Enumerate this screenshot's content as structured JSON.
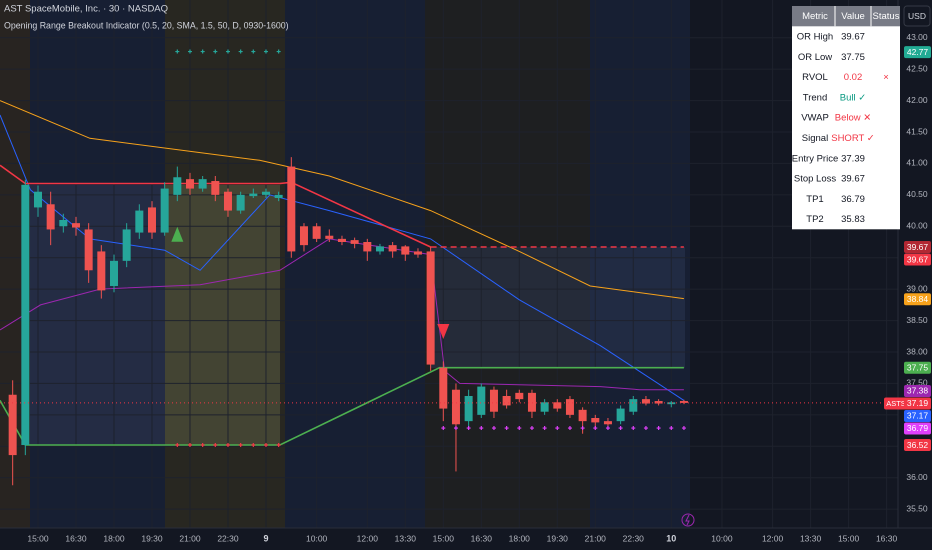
{
  "header": {
    "title": "AST SpaceMobile, Inc. · 30 · NASDAQ",
    "indicator": "Opening Range Breakout Indicator (0.5, 20, SMA, 1.5, 50, D, 0930-1600)"
  },
  "currency": "USD",
  "table": {
    "columns": [
      "Metric",
      "Value",
      "Status"
    ],
    "rows": [
      {
        "cells": [
          "OR High",
          "39.67"
        ]
      },
      {
        "cells": [
          "OR Low",
          "37.75"
        ]
      },
      {
        "cells": [
          "RVOL",
          "0.02",
          "×"
        ],
        "color": "#f23645"
      },
      {
        "cells": [
          "Trend",
          "Bull ✓"
        ],
        "color": "#089981"
      },
      {
        "cells": [
          "VWAP",
          "Below ✕"
        ],
        "color": "#f23645"
      },
      {
        "cells": [
          "Signal",
          "SHORT ✓"
        ],
        "color": "#f23645"
      },
      {
        "cells": [
          "Entry Price",
          "37.39"
        ]
      },
      {
        "cells": [
          "Stop Loss",
          "39.67"
        ]
      },
      {
        "cells": [
          "TP1",
          "36.79"
        ]
      },
      {
        "cells": [
          "TP2",
          "35.83"
        ]
      }
    ]
  },
  "chart_data": {
    "type": "candlestick",
    "up_color": "#26a69a",
    "down_color": "#ef5350",
    "grid": true,
    "xlim": [
      -3,
      67.9
    ],
    "ylim": [
      35.2,
      43.6
    ],
    "xticks": [
      {
        "value": 0,
        "label": "15:00"
      },
      {
        "value": 3,
        "label": "16:30"
      },
      {
        "value": 6,
        "label": "18:00"
      },
      {
        "value": 9,
        "label": "19:30"
      },
      {
        "value": 12,
        "label": "21:00"
      },
      {
        "value": 15,
        "label": "22:30"
      },
      {
        "value": 18,
        "label": "9"
      },
      {
        "value": 22,
        "label": "10:00"
      },
      {
        "value": 26,
        "label": "12:00"
      },
      {
        "value": 29,
        "label": "13:30"
      },
      {
        "value": 32,
        "label": "15:00"
      },
      {
        "value": 35,
        "label": "16:30"
      },
      {
        "value": 38,
        "label": "18:00"
      },
      {
        "value": 41,
        "label": "19:30"
      },
      {
        "value": 44,
        "label": "21:00"
      },
      {
        "value": 47,
        "label": "22:30"
      },
      {
        "value": 50,
        "label": "10"
      },
      {
        "value": 54,
        "label": "10:00"
      },
      {
        "value": 58,
        "label": "12:00"
      },
      {
        "value": 61,
        "label": "13:30"
      },
      {
        "value": 64,
        "label": "15:00"
      },
      {
        "value": 67,
        "label": "16:30"
      }
    ],
    "yticks": [
      {
        "value": 35.5,
        "label": "35.50"
      },
      {
        "value": 36,
        "label": "36.00"
      },
      {
        "value": 36.5,
        "label": "36.50"
      },
      {
        "value": 37,
        "label": "37.00"
      },
      {
        "value": 37.5,
        "label": "37.50"
      },
      {
        "value": 38,
        "label": "38.00"
      },
      {
        "value": 38.5,
        "label": "38.50"
      },
      {
        "value": 39,
        "label": "39.00"
      },
      {
        "value": 39.5,
        "label": "39.50"
      },
      {
        "value": 40,
        "label": "40.00"
      },
      {
        "value": 40.5,
        "label": "40.50"
      },
      {
        "value": 41,
        "label": "41.00"
      },
      {
        "value": 41.5,
        "label": "41.50"
      },
      {
        "value": 42,
        "label": "42.00"
      },
      {
        "value": 42.5,
        "label": "42.50"
      },
      {
        "value": 43,
        "label": "43.00"
      }
    ],
    "x": [
      -2,
      -1,
      0,
      1,
      2,
      3,
      4,
      5,
      6,
      7,
      8,
      9,
      10,
      11,
      12,
      13,
      14,
      15,
      16,
      17,
      18,
      19,
      20,
      21,
      22,
      23,
      24,
      25,
      26,
      27,
      28,
      29,
      30,
      31,
      32,
      33,
      34,
      35,
      36,
      37,
      38,
      39,
      40,
      41,
      42,
      43,
      44,
      45,
      46,
      47,
      48,
      49,
      50,
      51
    ],
    "open": [
      37.32,
      36.52,
      40.3,
      40.35,
      40.0,
      40.05,
      39.95,
      39.6,
      39.05,
      39.45,
      39.9,
      40.3,
      39.9,
      40.5,
      40.75,
      40.6,
      40.72,
      40.55,
      40.25,
      40.48,
      40.5,
      40.45,
      40.95,
      40.0,
      40.0,
      39.85,
      39.8,
      39.78,
      39.75,
      39.6,
      39.7,
      39.68,
      39.6,
      39.6,
      37.75,
      37.4,
      36.9,
      37.0,
      37.4,
      37.3,
      37.35,
      37.35,
      37.05,
      37.2,
      37.25,
      37.08,
      36.95,
      36.9,
      36.9,
      37.05,
      37.25,
      37.22,
      37.17,
      37.22
    ],
    "high": [
      37.55,
      40.74,
      40.65,
      40.55,
      40.2,
      40.15,
      40.05,
      39.7,
      39.55,
      40.05,
      40.35,
      40.4,
      40.7,
      40.95,
      40.85,
      40.8,
      40.8,
      40.6,
      40.55,
      40.6,
      40.6,
      40.55,
      41.1,
      40.05,
      40.05,
      39.95,
      39.85,
      39.82,
      39.8,
      39.72,
      39.75,
      39.7,
      39.65,
      39.67,
      37.85,
      37.5,
      37.4,
      37.5,
      37.45,
      37.4,
      37.4,
      37.4,
      37.25,
      37.25,
      37.3,
      37.12,
      37.0,
      36.95,
      37.15,
      37.3,
      37.3,
      37.25,
      37.22,
      37.24
    ],
    "low": [
      35.88,
      36.36,
      40.15,
      39.7,
      39.9,
      39.85,
      39.1,
      38.85,
      38.95,
      39.35,
      39.8,
      39.8,
      39.85,
      40.4,
      40.5,
      40.55,
      40.4,
      40.15,
      40.2,
      40.45,
      40.45,
      40.4,
      39.5,
      39.6,
      39.75,
      39.75,
      39.7,
      39.65,
      39.45,
      39.55,
      39.5,
      39.45,
      39.5,
      37.7,
      36.9,
      36.1,
      36.8,
      36.95,
      36.95,
      37.1,
      37.2,
      36.95,
      37.0,
      37.05,
      36.95,
      36.7,
      36.8,
      36.8,
      36.85,
      37.0,
      37.15,
      37.15,
      37.12,
      37.17
    ],
    "close": [
      36.36,
      40.66,
      40.55,
      39.95,
      40.1,
      39.98,
      39.3,
      38.98,
      39.45,
      39.95,
      40.25,
      39.9,
      40.6,
      40.78,
      40.6,
      40.75,
      40.5,
      40.25,
      40.5,
      40.52,
      40.55,
      40.5,
      39.6,
      39.7,
      39.8,
      39.8,
      39.75,
      39.72,
      39.6,
      39.68,
      39.6,
      39.55,
      39.55,
      37.8,
      37.1,
      36.85,
      37.3,
      37.45,
      37.05,
      37.15,
      37.25,
      37.05,
      37.2,
      37.1,
      37.0,
      36.9,
      36.88,
      36.85,
      37.1,
      37.25,
      37.18,
      37.18,
      37.2,
      37.19
    ],
    "overlays": [
      {
        "color": "#f7a21b",
        "style": "solid",
        "x": [
          -3,
          4.1,
          17.5,
          23,
          31,
          38,
          43.6,
          51
        ],
        "values": [
          42.0,
          41.4,
          41.05,
          40.8,
          40.25,
          39.6,
          39.05,
          38.85
        ]
      },
      {
        "color": "#2962ff",
        "style": "solid",
        "x": [
          -3,
          -0.6,
          4.1,
          10,
          12.8,
          18.3,
          23,
          31,
          38,
          44.4,
          51
        ],
        "values": [
          41.77,
          40.58,
          39.8,
          39.62,
          39.3,
          40.5,
          40.25,
          39.8,
          38.83,
          38.1,
          37.23
        ]
      },
      {
        "color": "#9c27b0",
        "style": "solid",
        "x": [
          -3,
          0.2,
          4.9,
          12.8,
          19.1,
          23,
          31,
          32.1,
          33.3,
          44.4,
          47.5,
          51
        ],
        "values": [
          38.35,
          38.75,
          39.0,
          39.07,
          39.3,
          39.8,
          39.55,
          37.7,
          37.5,
          37.45,
          37.4,
          37.4
        ]
      },
      {
        "color": "#f23645",
        "style": "solid",
        "x": [
          -3,
          -1,
          19.1,
          20,
          31
        ],
        "values": [
          40.97,
          40.68,
          40.68,
          40.7,
          39.67
        ]
      },
      {
        "color": "#f23645",
        "style": "dashed",
        "x": [
          31,
          51
        ],
        "values": [
          39.67,
          39.67
        ]
      },
      {
        "color": "#4caf50",
        "style": "solid",
        "x": [
          -3,
          -1,
          19.1,
          31.7,
          51
        ],
        "values": [
          37.23,
          36.52,
          36.52,
          37.75,
          37.75
        ]
      }
    ],
    "signals": [
      {
        "direction": "up",
        "color": "#4caf50",
        "x": 11,
        "value": 39.85
      },
      {
        "direction": "down",
        "color": "#f23645",
        "x": 32,
        "value": 38.35
      }
    ],
    "markers": [
      {
        "color": "#26a69a",
        "x": [
          11,
          12,
          13,
          14,
          15,
          16,
          17,
          18,
          19
        ],
        "values": [
          42.78,
          42.78,
          42.78,
          42.78,
          42.78,
          42.78,
          42.78,
          42.78,
          42.78
        ]
      },
      {
        "color": "#f23645",
        "x": [
          11,
          12,
          13,
          14,
          15,
          16,
          17,
          18,
          19
        ],
        "values": [
          36.52,
          36.52,
          36.52,
          36.52,
          36.52,
          36.52,
          36.52,
          36.52,
          36.52
        ]
      },
      {
        "color": "#e040fb",
        "x": [
          32,
          33,
          34,
          35,
          36,
          37,
          38,
          39,
          40,
          41,
          42,
          43,
          44,
          45,
          46,
          47,
          48,
          49,
          50,
          51
        ],
        "values": [
          36.79,
          36.79,
          36.79,
          36.79,
          36.79,
          36.79,
          36.79,
          36.79,
          36.79,
          36.79,
          36.79,
          36.79,
          36.79,
          36.79,
          36.79,
          36.79,
          36.79,
          36.79,
          36.79,
          36.79
        ]
      }
    ],
    "price_tags": [
      {
        "value": 42.77,
        "color": "#22ab94"
      },
      {
        "value": 39.67,
        "color": "#b22833"
      },
      {
        "value": 39.67,
        "color": "#f23645"
      },
      {
        "value": 38.84,
        "color": "#f7a21b"
      },
      {
        "value": 37.75,
        "color": "#4caf50"
      },
      {
        "value": 37.38,
        "color": "#9c27b0"
      },
      {
        "value": 37.19,
        "color": "#f23645",
        "symbol": "ASTS"
      },
      {
        "value": 37.17,
        "color": "#2962ff"
      },
      {
        "value": 36.79,
        "color": "#e040fb"
      },
      {
        "value": 36.52,
        "color": "#f23645"
      }
    ]
  }
}
